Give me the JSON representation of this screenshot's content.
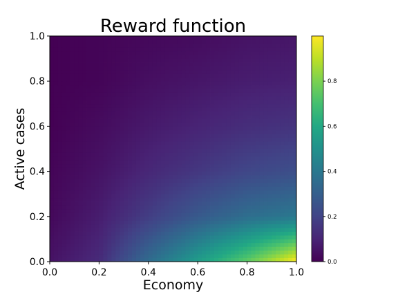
{
  "chart_data": {
    "type": "heatmap",
    "title": "Reward function",
    "xlabel": "Economy",
    "ylabel": "Active cases",
    "xlim": [
      0.0,
      1.0
    ],
    "ylim": [
      0.0,
      1.0
    ],
    "x_ticks": [
      "0.0",
      "0.2",
      "0.4",
      "0.6",
      "0.8",
      "1.0"
    ],
    "y_ticks": [
      "0.0",
      "0.2",
      "0.4",
      "0.6",
      "0.8",
      "1.0"
    ],
    "colormap": "viridis",
    "colorbar": {
      "range": [
        0.0,
        1.0
      ],
      "ticks": [
        "0.0",
        "0.2",
        "0.4",
        "0.6",
        "0.8"
      ]
    },
    "grid": {
      "x": [
        0.0,
        0.2,
        0.4,
        0.6,
        0.8,
        1.0
      ],
      "y": [
        0.0,
        0.2,
        0.4,
        0.6,
        0.8,
        1.0
      ],
      "z": [
        [
          0.05,
          0.12,
          0.35,
          0.55,
          0.75,
          1.0
        ],
        [
          0.02,
          0.08,
          0.18,
          0.28,
          0.36,
          0.4
        ],
        [
          0.01,
          0.05,
          0.11,
          0.16,
          0.21,
          0.24
        ],
        [
          0.0,
          0.03,
          0.07,
          0.1,
          0.13,
          0.15
        ],
        [
          0.0,
          0.01,
          0.04,
          0.06,
          0.08,
          0.09
        ],
        [
          0.0,
          0.01,
          0.02,
          0.03,
          0.05,
          0.06
        ]
      ]
    }
  }
}
